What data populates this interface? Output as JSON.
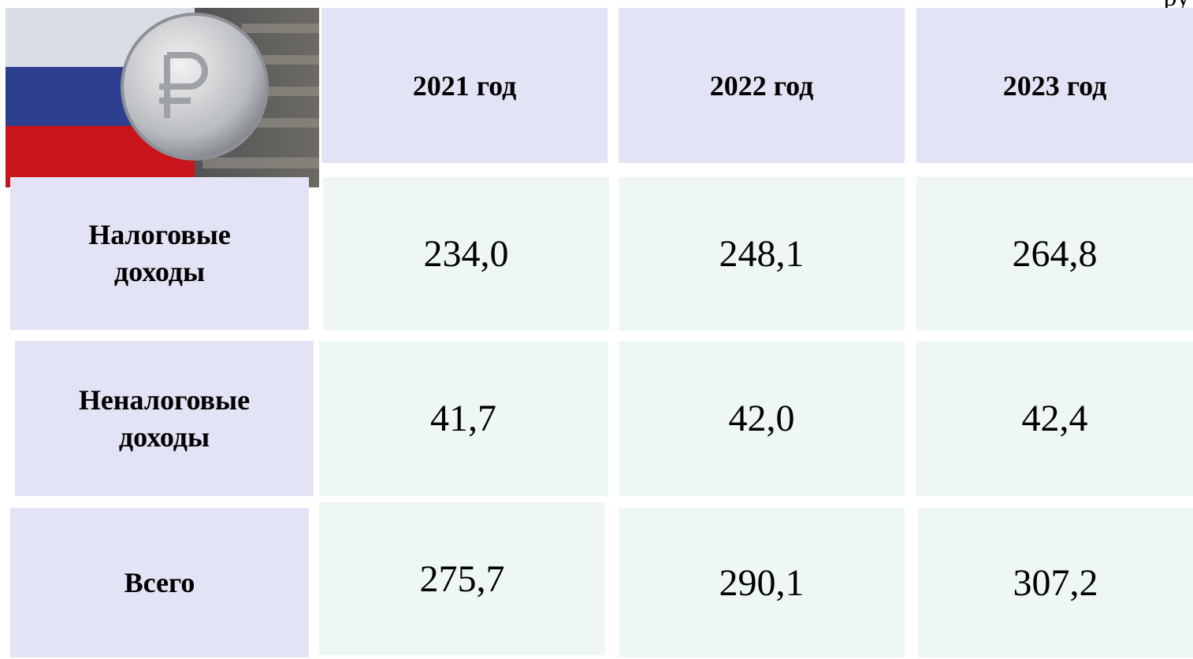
{
  "corner_note": "ру",
  "table": {
    "columns": [
      "2021 год",
      "2022 год",
      "2023 год"
    ],
    "rows": [
      {
        "label": "Налоговые доходы",
        "values": [
          "234,0",
          "248,1",
          "264,8"
        ]
      },
      {
        "label": "Неналоговые доходы",
        "values": [
          "41,7",
          "42,0",
          "42,4"
        ]
      },
      {
        "label": "Всего",
        "values": [
          "275,7",
          "290,1",
          "307,2"
        ]
      }
    ]
  }
}
